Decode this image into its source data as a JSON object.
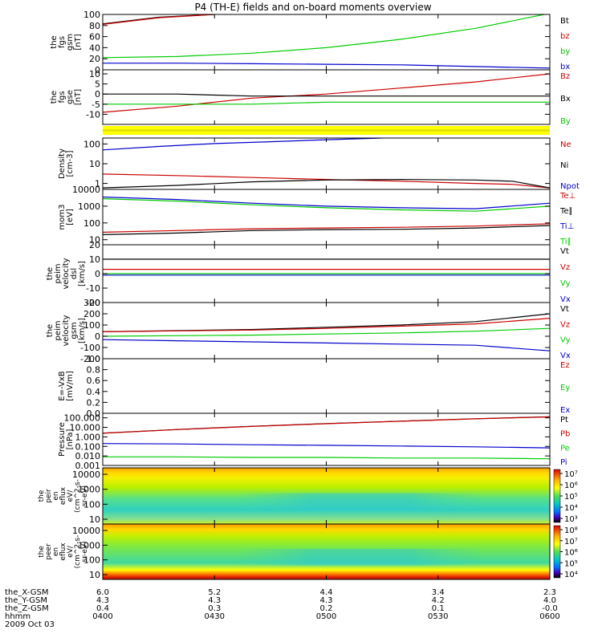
{
  "title": "P4 (TH-E) fields and on-board moments overview",
  "chart_data": {
    "type": "line",
    "title": "P4 (TH-E) fields and on-board moments overview",
    "x_ticks": [
      "0400",
      "0430",
      "0500",
      "0530",
      "0600"
    ],
    "x_range": [
      0,
      120
    ],
    "panels": [
      {
        "id": "fgs_gsm",
        "ylabel": [
          "the",
          "fgs",
          "gsm",
          "[nT]"
        ],
        "ylim": [
          0,
          100
        ],
        "yticks": [
          "100",
          "80",
          "60",
          "40",
          "20",
          "0"
        ],
        "yticks_values": [
          100,
          80,
          60,
          40,
          20,
          0
        ],
        "series": [
          {
            "name": "Bt",
            "color": "#000000",
            "x": [
              0,
              15,
              30
            ],
            "y": [
              83,
              95,
              100
            ]
          },
          {
            "name": "bz",
            "color": "#cc0000",
            "x": [
              0,
              15,
              30
            ],
            "y": [
              82,
              94,
              100
            ]
          },
          {
            "name": "by",
            "color": "#00cc00",
            "x": [
              0,
              20,
              40,
              60,
              80,
              100,
              120
            ],
            "y": [
              22,
              24,
              30,
              40,
              55,
              75,
              102
            ]
          },
          {
            "name": "bx",
            "color": "#0000cc",
            "x": [
              0,
              20,
              40,
              60,
              80,
              100,
              120
            ],
            "y": [
              12,
              12,
              11,
              10,
              9,
              6,
              3
            ]
          }
        ]
      },
      {
        "id": "fgs_gse",
        "ylabel": [
          "the",
          "fgs",
          "gse",
          "[nT]"
        ],
        "ylim": [
          -15,
          12
        ],
        "yticks": [
          "10",
          "5",
          "0",
          "-5",
          "-10"
        ],
        "yticks_values": [
          10,
          5,
          0,
          -5,
          -10
        ],
        "series": [
          {
            "name": "Bz",
            "color": "#cc0000",
            "x": [
              0,
              20,
              40,
              60,
              80,
              100,
              120
            ],
            "y": [
              -9,
              -6,
              -2,
              0,
              3,
              6,
              10
            ]
          },
          {
            "name": "Bx",
            "color": "#000000",
            "x": [
              0,
              20,
              40,
              60,
              80,
              100,
              120
            ],
            "y": [
              0,
              0,
              -1,
              -1,
              -1,
              -1,
              -1
            ]
          },
          {
            "name": "By",
            "color": "#00cc00",
            "x": [
              0,
              20,
              40,
              60,
              80,
              100,
              120
            ],
            "y": [
              -5,
              -5,
              -5,
              -4,
              -4,
              -4,
              -4
            ]
          }
        ]
      },
      {
        "id": "density",
        "ylabel": [
          "Density",
          "[cm-3]"
        ],
        "log": true,
        "ylim": [
          0.5,
          200
        ],
        "yticks": [
          "100",
          "10",
          "1"
        ],
        "yticks_values": [
          100,
          10,
          1
        ],
        "series": [
          {
            "name": "Ne",
            "color": "#cc0000",
            "x": [
              0,
              20,
              40,
              60,
              80,
              100,
              110,
              120
            ],
            "y": [
              3,
              2.5,
              2.0,
              1.6,
              1.3,
              1.0,
              0.9,
              0.6
            ]
          },
          {
            "name": "Ni",
            "color": "#000000",
            "x": [
              0,
              20,
              40,
              60,
              80,
              100,
              110,
              120
            ],
            "y": [
              0.6,
              0.8,
              1.2,
              1.5,
              1.6,
              1.5,
              1.3,
              0.6
            ]
          },
          {
            "name": "Npot",
            "color": "#0000cc",
            "x": [
              0,
              15,
              30,
              45,
              60,
              75
            ],
            "y": [
              50,
              75,
              105,
              130,
              165,
              200
            ]
          }
        ]
      },
      {
        "id": "temperature",
        "ylabel": [
          "mom3",
          "[eV]"
        ],
        "log": true,
        "ylim": [
          5,
          10000
        ],
        "yticks": [
          "10000",
          "1000",
          "100",
          "10"
        ],
        "yticks_values": [
          10000,
          1000,
          100,
          10
        ],
        "series": [
          {
            "name": "Te⊥",
            "color": "#cc0000",
            "x": [
              0,
              20,
              40,
              60,
              80,
              100,
              120
            ],
            "y": [
              28,
              35,
              45,
              50,
              55,
              65,
              90
            ]
          },
          {
            "name": "Te∥",
            "color": "#000000",
            "x": [
              0,
              20,
              40,
              60,
              80,
              100,
              120
            ],
            "y": [
              20,
              25,
              35,
              40,
              42,
              50,
              70
            ]
          },
          {
            "name": "Ti⊥",
            "color": "#0000cc",
            "x": [
              0,
              20,
              40,
              60,
              80,
              100,
              120
            ],
            "y": [
              3500,
              2500,
              1500,
              1000,
              800,
              700,
              1500
            ]
          },
          {
            "name": "Ti∥",
            "color": "#00cc00",
            "x": [
              0,
              20,
              40,
              60,
              80,
              100,
              120
            ],
            "y": [
              2800,
              2000,
              1200,
              800,
              600,
              500,
              1000
            ]
          }
        ]
      },
      {
        "id": "vel_dsl",
        "ylabel": [
          "the",
          "peim",
          "velocity",
          "dsl",
          "[km/s]"
        ],
        "ylim": [
          -20,
          20
        ],
        "yticks": [
          "20",
          "10",
          "0",
          "-10",
          "-20"
        ],
        "yticks_values": [
          20,
          10,
          0,
          -10,
          -20
        ],
        "series": [
          {
            "name": "Vt",
            "color": "#000000",
            "x": [
              0,
              120
            ],
            "y": [
              10,
              10
            ]
          },
          {
            "name": "Vz",
            "color": "#cc0000",
            "x": [
              0,
              120
            ],
            "y": [
              3,
              3
            ]
          },
          {
            "name": "Vy",
            "color": "#00cc00",
            "x": [
              0,
              120
            ],
            "y": [
              0,
              0
            ]
          },
          {
            "name": "Vx",
            "color": "#0000cc",
            "x": [
              0,
              120
            ],
            "y": [
              -1,
              -1
            ]
          }
        ]
      },
      {
        "id": "vel_gsm",
        "ylabel": [
          "the",
          "peim",
          "velocity",
          "gsm",
          "[km/s]"
        ],
        "ylim": [
          -200,
          300
        ],
        "yticks": [
          "300",
          "200",
          "100",
          "0",
          "-100",
          "-200"
        ],
        "yticks_values": [
          300,
          200,
          100,
          0,
          -100,
          -200
        ],
        "series": [
          {
            "name": "Vt",
            "color": "#000000",
            "x": [
              0,
              20,
              40,
              60,
              80,
              100,
              120
            ],
            "y": [
              40,
              50,
              60,
              80,
              100,
              130,
              200
            ]
          },
          {
            "name": "Vz",
            "color": "#cc0000",
            "x": [
              0,
              20,
              40,
              60,
              80,
              100,
              120
            ],
            "y": [
              40,
              48,
              55,
              70,
              90,
              110,
              160
            ]
          },
          {
            "name": "Vy",
            "color": "#00cc00",
            "x": [
              0,
              20,
              40,
              60,
              80,
              100,
              120
            ],
            "y": [
              0,
              5,
              10,
              20,
              30,
              45,
              70
            ]
          },
          {
            "name": "Vx",
            "color": "#0000cc",
            "x": [
              0,
              20,
              40,
              60,
              80,
              100,
              120
            ],
            "y": [
              -30,
              -40,
              -50,
              -60,
              -70,
              -80,
              -130
            ]
          }
        ]
      },
      {
        "id": "efield",
        "ylabel": [
          "E=-VxB",
          "[mV/m]"
        ],
        "ylim": [
          0,
          1
        ],
        "yticks": [
          "1.0",
          "0.8",
          "0.6",
          "0.4",
          "0.2",
          "0.0"
        ],
        "yticks_values": [
          1.0,
          0.8,
          0.6,
          0.4,
          0.2,
          0.0
        ],
        "series": [
          {
            "name": "Ez",
            "color": "#cc0000",
            "x": [],
            "y": []
          },
          {
            "name": "Ey",
            "color": "#00cc00",
            "x": [],
            "y": []
          },
          {
            "name": "Ex",
            "color": "#0000cc",
            "x": [],
            "y": []
          }
        ]
      },
      {
        "id": "pressure",
        "ylabel": [
          "Pressure",
          "[nPa]"
        ],
        "log": true,
        "ylim": [
          0.001,
          300
        ],
        "yticks": [
          "100.000",
          "10.000",
          "1.000",
          "0.100",
          "0.010",
          "0.001"
        ],
        "yticks_values": [
          100,
          10,
          1,
          0.1,
          0.01,
          0.001
        ],
        "series": [
          {
            "name": "Pt",
            "color": "#000000",
            "x": [
              0,
              20,
              40,
              60,
              80,
              100,
              120
            ],
            "y": [
              2.5,
              6,
              13,
              25,
              45,
              80,
              130
            ]
          },
          {
            "name": "Pb",
            "color": "#cc0000",
            "x": [
              0,
              20,
              40,
              60,
              80,
              100,
              120
            ],
            "y": [
              2.4,
              5.8,
              12.5,
              24,
              44,
              78,
              125
            ]
          },
          {
            "name": "Pe",
            "color": "#00cc00",
            "x": [
              0,
              20,
              40,
              60,
              80,
              100,
              120
            ],
            "y": [
              0.008,
              0.008,
              0.007,
              0.007,
              0.006,
              0.006,
              0.005
            ]
          },
          {
            "name": "Pi",
            "color": "#0000cc",
            "x": [
              0,
              20,
              40,
              60,
              80,
              100,
              120
            ],
            "y": [
              0.2,
              0.18,
              0.15,
              0.13,
              0.11,
              0.09,
              0.07
            ]
          }
        ]
      }
    ],
    "spectrograms": [
      {
        "id": "peir",
        "ylabel": [
          "the",
          "peir",
          "en",
          "eflux",
          "eV/",
          "(cm^2-s-",
          "sr-eV)"
        ],
        "yticks": [
          "10000",
          "1000",
          "100",
          "10"
        ],
        "colorbar_ticks": [
          "10⁷",
          "10⁶",
          "10⁵",
          "10⁴",
          "10³"
        ]
      },
      {
        "id": "peer",
        "ylabel": [
          "the",
          "peer",
          "en",
          "eflux",
          "eV/",
          "(cm^2-s-",
          "sr-eV)"
        ],
        "yticks": [
          "10000",
          "1000",
          "100",
          "10"
        ],
        "colorbar_ticks": [
          "10⁸",
          "10⁷",
          "10⁶",
          "10⁵",
          "10⁴"
        ]
      }
    ],
    "ephemeris": {
      "rows": [
        {
          "label": "the_X-GSM",
          "values": [
            "6.0",
            "5.2",
            "4.4",
            "3.4",
            "2.3"
          ]
        },
        {
          "label": "the_Y-GSM",
          "values": [
            "4.3",
            "4.3",
            "4.3",
            "4.2",
            "4.0"
          ]
        },
        {
          "label": "the_Z-GSM",
          "values": [
            "0.4",
            "0.3",
            "0.2",
            "0.1",
            "-0.0"
          ]
        },
        {
          "label": "hhmm",
          "values": [
            "0400",
            "0430",
            "0500",
            "0530",
            "0600"
          ]
        }
      ],
      "date": "2009 Oct 03"
    }
  }
}
